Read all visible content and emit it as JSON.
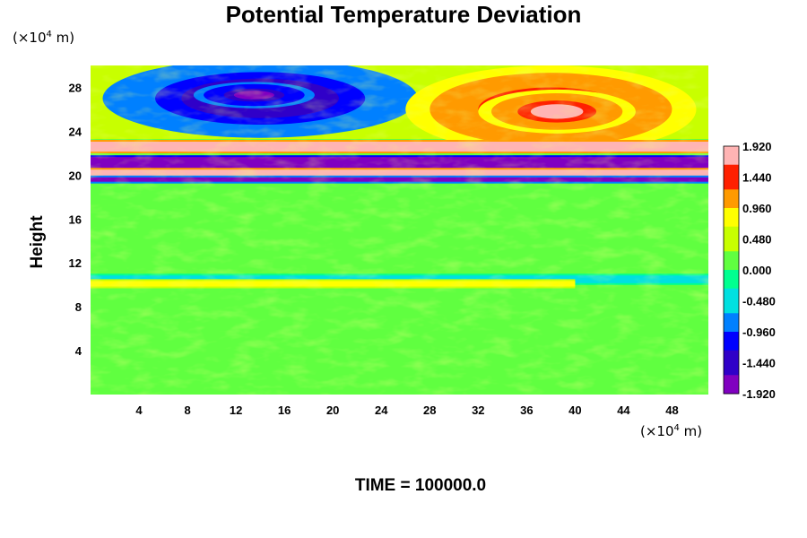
{
  "chart_data": {
    "type": "heatmap",
    "title": "Potential Temperature Deviation",
    "ylabel": "Height",
    "x_unit": {
      "base": "(×10",
      "exp": "4",
      "tail": " m)"
    },
    "y_unit": {
      "base": "(×10",
      "exp": "4",
      "tail": " m)"
    },
    "x_ticks": [
      4,
      8,
      12,
      16,
      20,
      24,
      28,
      32,
      36,
      40,
      44,
      48
    ],
    "y_ticks": [
      4,
      8,
      12,
      16,
      20,
      24,
      28
    ],
    "xlim": [
      0,
      51
    ],
    "ylim": [
      0,
      30
    ],
    "colorbar": {
      "min": -1.92,
      "max": 1.92,
      "tick_labels": [
        "1.920",
        "1.440",
        "0.960",
        "0.480",
        "0.000",
        "-0.480",
        "-0.960",
        "-1.440",
        "-1.920"
      ],
      "tick_values": [
        1.92,
        1.44,
        0.96,
        0.48,
        0.0,
        -0.48,
        -0.96,
        -1.44,
        -1.92
      ],
      "colormap": [
        "#8000c0",
        "#3000c8",
        "#0000ff",
        "#0080ff",
        "#00e0e0",
        "#00ff90",
        "#60ff40",
        "#c8ff00",
        "#ffff00",
        "#ff9a00",
        "#ff2000",
        "#ffb4b4"
      ]
    },
    "features": [
      {
        "kind": "blob",
        "x": 14.0,
        "y": 27.0,
        "rx": 13.0,
        "ry": 3.6,
        "v": -1.8
      },
      {
        "kind": "blob",
        "x": 13.5,
        "y": 27.3,
        "rx": 5.0,
        "ry": 1.2,
        "v": -2.0
      },
      {
        "kind": "blob",
        "x": 38.0,
        "y": 26.0,
        "rx": 12.0,
        "ry": 4.0,
        "v": 1.92
      },
      {
        "kind": "blob",
        "x": 38.5,
        "y": 25.8,
        "rx": 6.5,
        "ry": 2.0,
        "v": 2.0
      },
      {
        "kind": "band",
        "y": 22.6,
        "h": 0.9,
        "v": 1.9,
        "x0": 0,
        "x1": 51
      },
      {
        "kind": "band",
        "y": 21.1,
        "h": 1.1,
        "v": -1.9,
        "x0": 0,
        "x1": 51
      },
      {
        "kind": "band",
        "y": 20.2,
        "h": 0.6,
        "v": 1.9,
        "x0": 0,
        "x1": 51
      },
      {
        "kind": "band",
        "y": 19.6,
        "h": 0.4,
        "v": -1.6,
        "x0": 0,
        "x1": 51
      },
      {
        "kind": "band",
        "y": 10.5,
        "h": 0.7,
        "v": -0.45,
        "x0": 0,
        "x1": 51
      },
      {
        "kind": "band",
        "y": 10.1,
        "h": 0.5,
        "v": 0.7,
        "x0": 0,
        "x1": 40
      }
    ],
    "time_label": "TIME = 100000.0"
  }
}
